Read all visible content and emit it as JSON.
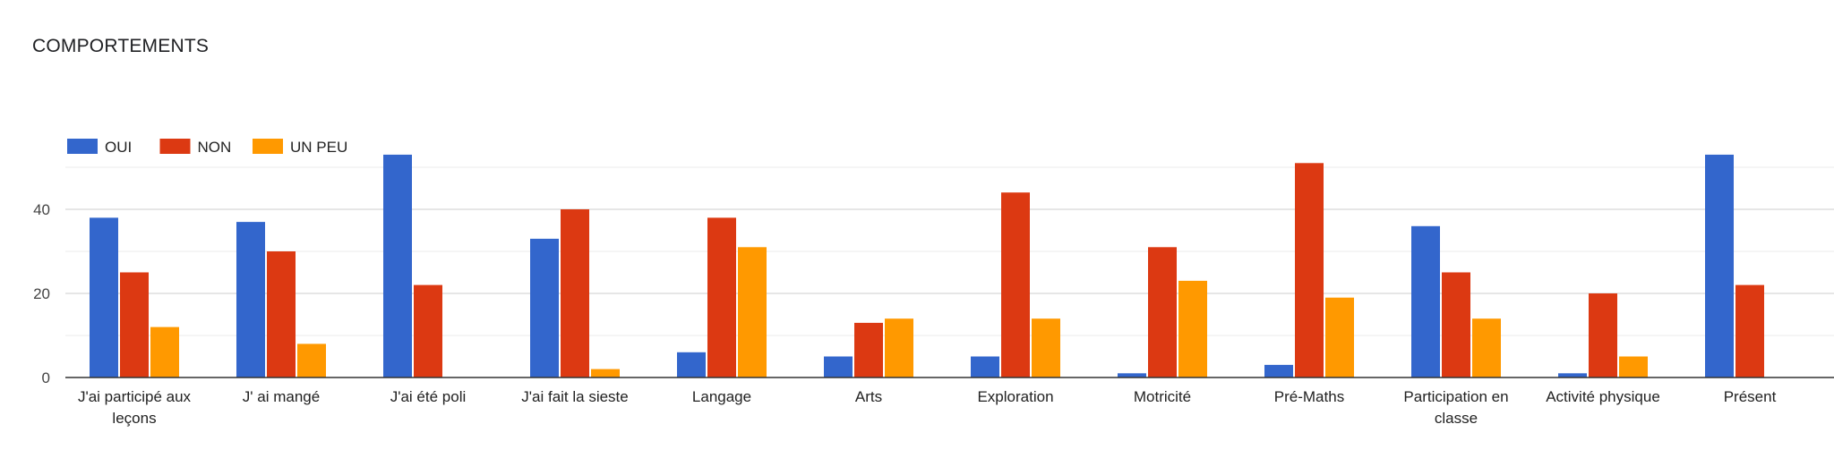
{
  "chart_data": {
    "type": "bar",
    "title": "COMPORTEMENTS",
    "xlabel": "",
    "ylabel": "",
    "ylim": [
      0,
      55
    ],
    "yticks": [
      0,
      20,
      40
    ],
    "grid": true,
    "legend_position": "top-left",
    "categories": [
      "J'ai participé aux leçons",
      "J' ai mangé",
      "J'ai été poli",
      "J'ai fait la sieste",
      "Langage",
      "Arts",
      "Exploration",
      "Motricité",
      "Pré-Maths",
      "Participation en classe",
      "Activité physique",
      "Présent"
    ],
    "series": [
      {
        "name": "OUI",
        "color": "#3366cc",
        "values": [
          38,
          37,
          53,
          33,
          6,
          5,
          5,
          1,
          3,
          36,
          1,
          53
        ]
      },
      {
        "name": "NON",
        "color": "#dc3912",
        "values": [
          25,
          30,
          22,
          40,
          38,
          13,
          44,
          31,
          51,
          25,
          20,
          22
        ]
      },
      {
        "name": "UN PEU",
        "color": "#ff9900",
        "values": [
          12,
          8,
          0,
          2,
          31,
          14,
          14,
          23,
          19,
          14,
          5,
          0
        ]
      }
    ]
  }
}
